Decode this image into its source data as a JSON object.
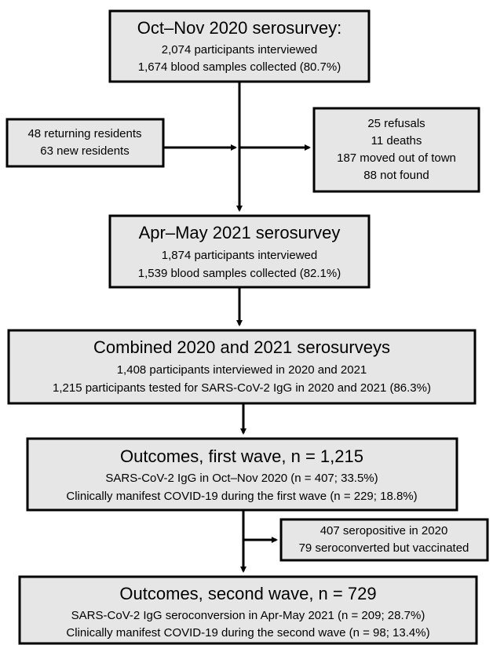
{
  "nodes": [
    {
      "title": "Oct–Nov 2020 serosurvey:",
      "lines": [
        "2,074 participants interviewed",
        "1,674 blood samples collected (80.7%)"
      ]
    },
    {
      "title": "Apr–May 2021 serosurvey",
      "lines": [
        "1,874 participants interviewed",
        "1,539 blood samples collected (82.1%)"
      ]
    },
    {
      "title": "Combined 2020 and 2021 serosurveys",
      "lines": [
        "1,408 participants interviewed in 2020 and 2021",
        "1,215 participants tested for SARS-CoV-2 IgG in 2020 and 2021 (86.3%)"
      ]
    },
    {
      "title": "Outcomes, first wave, n = 1,215",
      "lines": [
        "SARS-CoV-2 IgG in Oct–Nov 2020 (n = 407; 33.5%)",
        "Clinically manifest COVID-19 during the first wave (n = 229; 18.8%)"
      ]
    },
    {
      "title": "Outcomes, second wave, n = 729",
      "lines": [
        "SARS-CoV-2 IgG seroconversion in Apr-May 2021 (n = 209; 28.7%)",
        "Clinically manifest COVID-19 during the second wave (n = 98; 13.4%)"
      ]
    }
  ],
  "side_boxes": [
    {
      "lines": [
        "48 returning residents",
        "63 new residents"
      ]
    },
    {
      "lines": [
        "25 refusals",
        "11 deaths",
        "187 moved out of town",
        "88 not found"
      ]
    },
    {
      "lines": [
        "407 seropositive in 2020",
        "79 seroconverted but vaccinated"
      ]
    }
  ]
}
